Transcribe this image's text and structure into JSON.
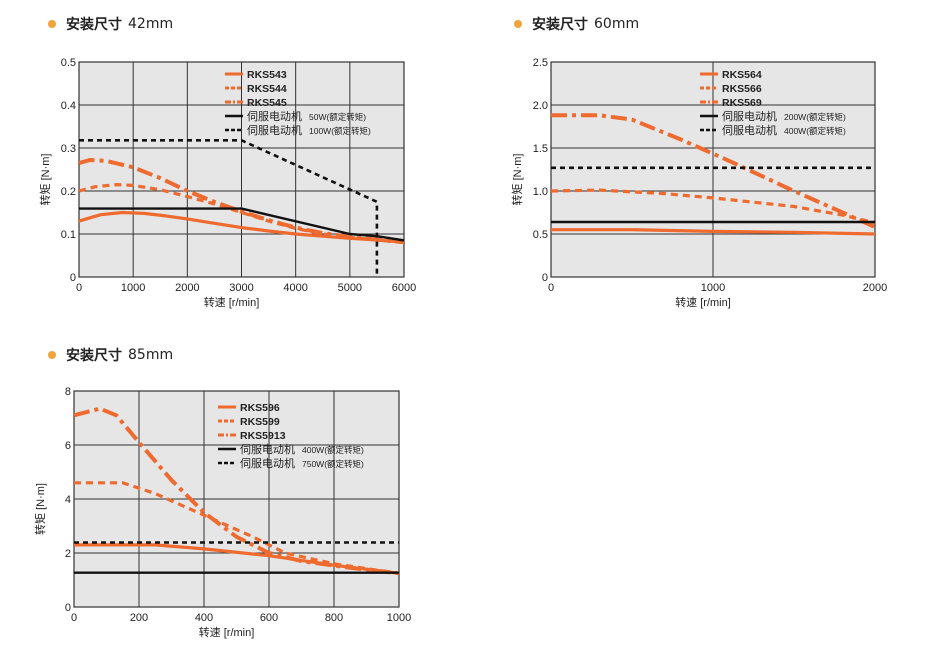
{
  "charts": [
    {
      "key": "c42",
      "heading": "安装尺寸",
      "size": "42mm",
      "chart_data": {
        "type": "line",
        "title": "安装尺寸 42mm",
        "xlabel": "转速  [r/min]",
        "ylabel": "转矩  [N·m]",
        "xlim": [
          0,
          6000
        ],
        "ylim": [
          0,
          0.5
        ],
        "x_ticks": [
          0,
          1000,
          2000,
          3000,
          4000,
          5000,
          6000
        ],
        "y_ticks": [
          0,
          0.1,
          0.2,
          0.3,
          0.4,
          0.5
        ],
        "x_tick_labels": [
          "0",
          "1000",
          "2000",
          "3000",
          "4000",
          "5000",
          "6000"
        ],
        "y_tick_labels": [
          "0",
          "0.1",
          "0.2",
          "0.3",
          "0.4",
          "0.5"
        ],
        "grid": true,
        "legend_position": "top-right",
        "series": [
          {
            "name": "RKS543",
            "style": "solid-orange",
            "points": [
              [
                0,
                0.13
              ],
              [
                400,
                0.145
              ],
              [
                800,
                0.15
              ],
              [
                1200,
                0.148
              ],
              [
                1600,
                0.142
              ],
              [
                2000,
                0.135
              ],
              [
                2500,
                0.125
              ],
              [
                3000,
                0.115
              ],
              [
                3500,
                0.107
              ],
              [
                4000,
                0.1
              ],
              [
                4500,
                0.095
              ],
              [
                5000,
                0.09
              ],
              [
                5500,
                0.086
              ],
              [
                6000,
                0.081
              ]
            ]
          },
          {
            "name": "RKS544",
            "style": "dash-orange",
            "points": [
              [
                0,
                0.2
              ],
              [
                300,
                0.21
              ],
              [
                700,
                0.215
              ],
              [
                1000,
                0.213
              ],
              [
                1500,
                0.203
              ],
              [
                2000,
                0.187
              ],
              [
                2500,
                0.17
              ],
              [
                3000,
                0.15
              ],
              [
                3500,
                0.13
              ],
              [
                4000,
                0.113
              ],
              [
                4500,
                0.1
              ],
              [
                5000,
                0.092
              ],
              [
                5500,
                0.086
              ],
              [
                6000,
                0.08
              ]
            ]
          },
          {
            "name": "RKS545",
            "style": "dashdot-orange",
            "points": [
              [
                0,
                0.265
              ],
              [
                200,
                0.272
              ],
              [
                500,
                0.27
              ],
              [
                1000,
                0.255
              ],
              [
                1500,
                0.23
              ],
              [
                2000,
                0.2
              ],
              [
                2500,
                0.175
              ],
              [
                3000,
                0.152
              ],
              [
                3500,
                0.132
              ],
              [
                4000,
                0.115
              ],
              [
                4500,
                0.102
              ],
              [
                5000,
                0.093
              ],
              [
                5500,
                0.087
              ],
              [
                6000,
                0.081
              ]
            ]
          },
          {
            "name": "伺服电动机",
            "rating": "50W",
            "note": "额定转矩",
            "legend_label": "50W(额定转矩)",
            "style": "solid-black",
            "points": [
              [
                0,
                0.159
              ],
              [
                3000,
                0.159
              ],
              [
                5000,
                0.1
              ],
              [
                5500,
                0.095
              ],
              [
                6000,
                0.085
              ]
            ]
          },
          {
            "name": "伺服电动机",
            "rating": "100W",
            "note": "额定转矩",
            "legend_label": "100W(额定转矩)",
            "style": "dash-black",
            "points": [
              [
                0,
                0.318
              ],
              [
                3000,
                0.318
              ],
              [
                5500,
                0.175
              ],
              [
                5500,
                0
              ]
            ]
          }
        ]
      }
    },
    {
      "key": "c60",
      "heading": "安装尺寸",
      "size": "60mm",
      "chart_data": {
        "type": "line",
        "title": "安装尺寸 60mm",
        "xlabel": "转速  [r/min]",
        "ylabel": "转矩  [N·m]",
        "xlim": [
          0,
          2000
        ],
        "ylim": [
          0,
          2.5
        ],
        "x_ticks": [
          0,
          1000,
          2000
        ],
        "y_ticks": [
          0,
          0.5,
          1.0,
          1.5,
          2.0,
          2.5
        ],
        "x_tick_labels": [
          "0",
          "1000",
          "2000"
        ],
        "y_tick_labels": [
          "0",
          "0.5",
          "1.0",
          "1.5",
          "2.0",
          "2.5"
        ],
        "grid": true,
        "legend_position": "top-right",
        "series": [
          {
            "name": "RKS564",
            "style": "solid-orange",
            "points": [
              [
                0,
                0.55
              ],
              [
                500,
                0.55
              ],
              [
                1000,
                0.53
              ],
              [
                1500,
                0.52
              ],
              [
                2000,
                0.5
              ]
            ]
          },
          {
            "name": "RKS566",
            "style": "dash-orange",
            "points": [
              [
                0,
                1.0
              ],
              [
                300,
                1.01
              ],
              [
                700,
                0.97
              ],
              [
                1000,
                0.92
              ],
              [
                1500,
                0.82
              ],
              [
                1800,
                0.72
              ],
              [
                2000,
                0.63
              ]
            ]
          },
          {
            "name": "RKS569",
            "style": "dashdot-orange",
            "points": [
              [
                0,
                1.88
              ],
              [
                300,
                1.88
              ],
              [
                500,
                1.83
              ],
              [
                800,
                1.6
              ],
              [
                1100,
                1.35
              ],
              [
                1500,
                1.0
              ],
              [
                1800,
                0.75
              ],
              [
                2000,
                0.58
              ]
            ]
          },
          {
            "name": "伺服电动机",
            "rating": "200W",
            "note": "额定转矩",
            "legend_label": "200W(额定转矩)",
            "style": "solid-black",
            "points": [
              [
                0,
                0.64
              ],
              [
                2000,
                0.64
              ]
            ]
          },
          {
            "name": "伺服电动机",
            "rating": "400W",
            "note": "额定转矩",
            "legend_label": "400W(额定转矩)",
            "style": "dash-black",
            "points": [
              [
                0,
                1.27
              ],
              [
                2000,
                1.27
              ]
            ]
          }
        ]
      }
    },
    {
      "key": "c85",
      "heading": "安装尺寸",
      "size": "85mm",
      "chart_data": {
        "type": "line",
        "title": "安装尺寸 85mm",
        "xlabel": "转速  [r/min]",
        "ylabel": "转矩  [N·m]",
        "xlim": [
          0,
          1000
        ],
        "ylim": [
          0,
          8
        ],
        "x_ticks": [
          0,
          200,
          400,
          600,
          800,
          1000
        ],
        "y_ticks": [
          0,
          2,
          4,
          6,
          8
        ],
        "x_tick_labels": [
          "0",
          "200",
          "400",
          "600",
          "800",
          "1000"
        ],
        "y_tick_labels": [
          "0",
          "2",
          "4",
          "6",
          "8"
        ],
        "grid": true,
        "legend_position": "top-right",
        "series": [
          {
            "name": "RKS596",
            "style": "solid-orange",
            "points": [
              [
                0,
                2.3
              ],
              [
                250,
                2.3
              ],
              [
                400,
                2.15
              ],
              [
                600,
                1.9
              ],
              [
                800,
                1.55
              ],
              [
                1000,
                1.25
              ]
            ]
          },
          {
            "name": "RKS599",
            "style": "dash-orange",
            "points": [
              [
                0,
                4.6
              ],
              [
                150,
                4.6
              ],
              [
                250,
                4.2
              ],
              [
                400,
                3.4
              ],
              [
                550,
                2.6
              ],
              [
                650,
                2.0
              ],
              [
                800,
                1.6
              ],
              [
                1000,
                1.25
              ]
            ]
          },
          {
            "name": "RKS5913",
            "style": "dashdot-orange",
            "points": [
              [
                0,
                7.1
              ],
              [
                80,
                7.35
              ],
              [
                130,
                7.1
              ],
              [
                200,
                6.1
              ],
              [
                300,
                4.7
              ],
              [
                400,
                3.5
              ],
              [
                500,
                2.6
              ],
              [
                600,
                2.0
              ],
              [
                700,
                1.7
              ],
              [
                850,
                1.45
              ],
              [
                1000,
                1.25
              ]
            ]
          },
          {
            "name": "伺服电动机",
            "rating": "400W",
            "note": "额定转矩",
            "legend_label": "400W(额定转矩)",
            "style": "solid-black",
            "points": [
              [
                0,
                1.27
              ],
              [
                1000,
                1.27
              ]
            ]
          },
          {
            "name": "伺服电动机",
            "rating": "750W",
            "note": "额定转矩",
            "legend_label": "750W(额定转矩)",
            "style": "dash-black",
            "points": [
              [
                0,
                2.39
              ],
              [
                1000,
                2.39
              ]
            ]
          }
        ]
      }
    }
  ]
}
